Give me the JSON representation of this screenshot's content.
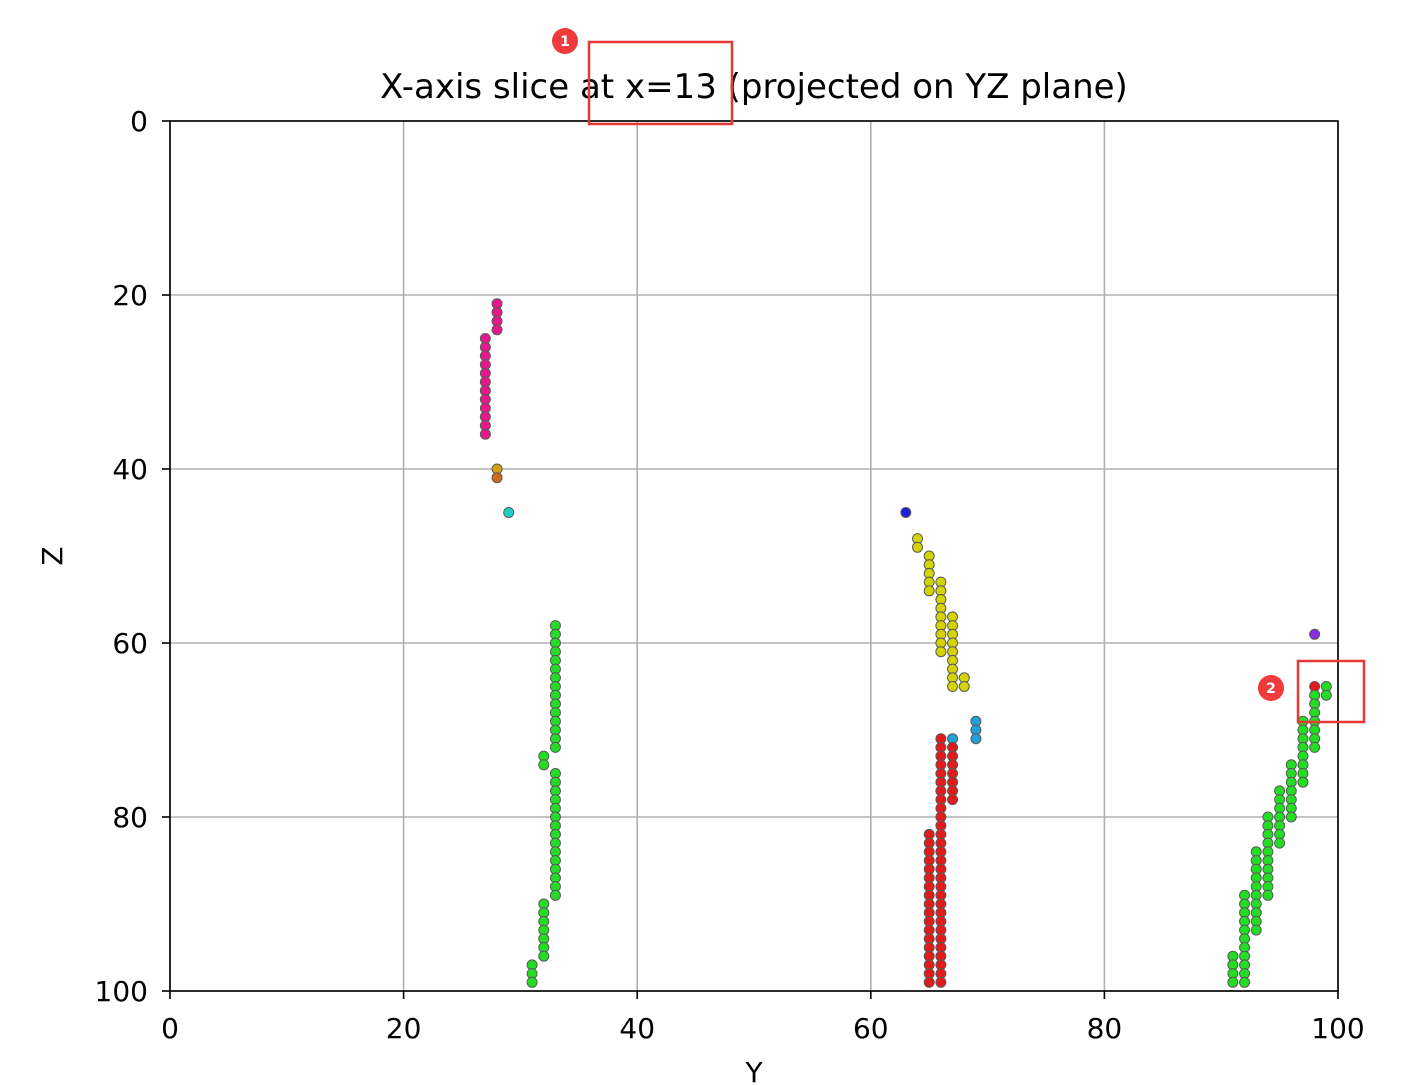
{
  "chart_data": {
    "type": "scatter",
    "title": "X-axis slice at x=13 (projected on YZ plane)",
    "xlabel": "Y",
    "ylabel": "Z",
    "xlim": [
      0,
      100
    ],
    "ylim": [
      100,
      0
    ],
    "y_inverted": true,
    "x_ticks": [
      "0",
      "20",
      "40",
      "60",
      "80",
      "100"
    ],
    "y_ticks": [
      "0",
      "20",
      "40",
      "60",
      "80",
      "100"
    ],
    "grid": true,
    "series": [
      {
        "color": "#e8178a",
        "points": [
          [
            28,
            21
          ],
          [
            28,
            22
          ],
          [
            28,
            23
          ],
          [
            28,
            24
          ],
          [
            27,
            25
          ],
          [
            27,
            26
          ],
          [
            27,
            27
          ],
          [
            27,
            28
          ],
          [
            27,
            29
          ],
          [
            27,
            30
          ],
          [
            27,
            31
          ],
          [
            27,
            32
          ],
          [
            27,
            33
          ],
          [
            27,
            34
          ],
          [
            27,
            35
          ],
          [
            27,
            36
          ]
        ]
      },
      {
        "color": "#d4a017",
        "points": [
          [
            28,
            40
          ]
        ]
      },
      {
        "color": "#d2691e",
        "points": [
          [
            28,
            41
          ]
        ]
      },
      {
        "color": "#20d0c8",
        "points": [
          [
            29,
            45
          ]
        ]
      },
      {
        "color": "#1f1fd6",
        "points": [
          [
            63,
            45
          ]
        ]
      },
      {
        "color": "#8a2be2",
        "points": [
          [
            98,
            59
          ]
        ]
      },
      {
        "color": "#1fa0d6",
        "points": [
          [
            67,
            71
          ],
          [
            69,
            69
          ],
          [
            69,
            70
          ],
          [
            69,
            71
          ]
        ]
      },
      {
        "color": "#d4d400",
        "points": [
          [
            64,
            48
          ],
          [
            64,
            49
          ],
          [
            65,
            50
          ],
          [
            65,
            51
          ],
          [
            65,
            52
          ],
          [
            65,
            53
          ],
          [
            65,
            54
          ],
          [
            66,
            53
          ],
          [
            66,
            54
          ],
          [
            66,
            55
          ],
          [
            66,
            56
          ],
          [
            66,
            57
          ],
          [
            66,
            58
          ],
          [
            66,
            59
          ],
          [
            66,
            60
          ],
          [
            66,
            61
          ],
          [
            67,
            57
          ],
          [
            67,
            58
          ],
          [
            67,
            59
          ],
          [
            67,
            60
          ],
          [
            67,
            61
          ],
          [
            67,
            62
          ],
          [
            67,
            63
          ],
          [
            67,
            64
          ],
          [
            67,
            65
          ],
          [
            68,
            64
          ],
          [
            68,
            65
          ]
        ]
      },
      {
        "color": "#e31a1c",
        "points": [
          [
            98,
            65
          ],
          [
            66,
            71
          ],
          [
            66,
            72
          ],
          [
            66,
            73
          ],
          [
            66,
            74
          ],
          [
            66,
            75
          ],
          [
            66,
            76
          ],
          [
            66,
            77
          ],
          [
            66,
            78
          ],
          [
            66,
            79
          ],
          [
            66,
            80
          ],
          [
            66,
            81
          ],
          [
            66,
            82
          ],
          [
            66,
            83
          ],
          [
            66,
            84
          ],
          [
            66,
            85
          ],
          [
            66,
            86
          ],
          [
            66,
            87
          ],
          [
            66,
            88
          ],
          [
            66,
            89
          ],
          [
            66,
            90
          ],
          [
            66,
            91
          ],
          [
            66,
            92
          ],
          [
            66,
            93
          ],
          [
            66,
            94
          ],
          [
            66,
            95
          ],
          [
            66,
            96
          ],
          [
            66,
            97
          ],
          [
            66,
            98
          ],
          [
            66,
            99
          ],
          [
            67,
            72
          ],
          [
            67,
            73
          ],
          [
            67,
            74
          ],
          [
            67,
            75
          ],
          [
            67,
            76
          ],
          [
            67,
            77
          ],
          [
            67,
            78
          ],
          [
            65,
            82
          ],
          [
            65,
            83
          ],
          [
            65,
            84
          ],
          [
            65,
            85
          ],
          [
            65,
            86
          ],
          [
            65,
            87
          ],
          [
            65,
            88
          ],
          [
            65,
            89
          ],
          [
            65,
            90
          ],
          [
            65,
            91
          ],
          [
            65,
            92
          ],
          [
            65,
            93
          ],
          [
            65,
            94
          ],
          [
            65,
            95
          ],
          [
            65,
            96
          ],
          [
            65,
            97
          ],
          [
            65,
            98
          ],
          [
            65,
            99
          ]
        ]
      },
      {
        "color": "#22dd22",
        "points": [
          [
            33,
            58
          ],
          [
            33,
            59
          ],
          [
            33,
            60
          ],
          [
            33,
            61
          ],
          [
            33,
            62
          ],
          [
            33,
            63
          ],
          [
            33,
            64
          ],
          [
            33,
            65
          ],
          [
            33,
            66
          ],
          [
            33,
            67
          ],
          [
            33,
            68
          ],
          [
            33,
            69
          ],
          [
            33,
            70
          ],
          [
            33,
            71
          ],
          [
            33,
            72
          ],
          [
            32,
            73
          ],
          [
            32,
            74
          ],
          [
            33,
            75
          ],
          [
            33,
            76
          ],
          [
            33,
            77
          ],
          [
            33,
            78
          ],
          [
            33,
            79
          ],
          [
            33,
            80
          ],
          [
            33,
            81
          ],
          [
            33,
            82
          ],
          [
            33,
            83
          ],
          [
            33,
            84
          ],
          [
            33,
            85
          ],
          [
            33,
            86
          ],
          [
            33,
            87
          ],
          [
            33,
            88
          ],
          [
            33,
            89
          ],
          [
            32,
            90
          ],
          [
            32,
            91
          ],
          [
            32,
            92
          ],
          [
            32,
            93
          ],
          [
            32,
            94
          ],
          [
            32,
            95
          ],
          [
            32,
            96
          ],
          [
            31,
            97
          ],
          [
            31,
            98
          ],
          [
            31,
            99
          ],
          [
            99,
            65
          ],
          [
            99,
            66
          ],
          [
            98,
            66
          ],
          [
            98,
            67
          ],
          [
            98,
            68
          ],
          [
            98,
            69
          ],
          [
            98,
            70
          ],
          [
            98,
            71
          ],
          [
            98,
            72
          ],
          [
            97,
            69
          ],
          [
            97,
            70
          ],
          [
            97,
            71
          ],
          [
            97,
            72
          ],
          [
            97,
            73
          ],
          [
            97,
            74
          ],
          [
            97,
            75
          ],
          [
            97,
            76
          ],
          [
            96,
            74
          ],
          [
            96,
            75
          ],
          [
            96,
            76
          ],
          [
            96,
            77
          ],
          [
            96,
            78
          ],
          [
            96,
            79
          ],
          [
            96,
            80
          ],
          [
            95,
            77
          ],
          [
            95,
            78
          ],
          [
            95,
            79
          ],
          [
            95,
            80
          ],
          [
            95,
            81
          ],
          [
            95,
            82
          ],
          [
            95,
            83
          ],
          [
            94,
            80
          ],
          [
            94,
            81
          ],
          [
            94,
            82
          ],
          [
            94,
            83
          ],
          [
            94,
            84
          ],
          [
            94,
            85
          ],
          [
            94,
            86
          ],
          [
            94,
            87
          ],
          [
            94,
            88
          ],
          [
            94,
            89
          ],
          [
            93,
            84
          ],
          [
            93,
            85
          ],
          [
            93,
            86
          ],
          [
            93,
            87
          ],
          [
            93,
            88
          ],
          [
            93,
            89
          ],
          [
            93,
            90
          ],
          [
            93,
            91
          ],
          [
            93,
            92
          ],
          [
            93,
            93
          ],
          [
            92,
            89
          ],
          [
            92,
            90
          ],
          [
            92,
            91
          ],
          [
            92,
            92
          ],
          [
            92,
            93
          ],
          [
            92,
            94
          ],
          [
            92,
            95
          ],
          [
            92,
            96
          ],
          [
            92,
            97
          ],
          [
            92,
            98
          ],
          [
            92,
            99
          ],
          [
            91,
            96
          ],
          [
            91,
            97
          ],
          [
            91,
            98
          ],
          [
            91,
            99
          ]
        ]
      }
    ],
    "annotations": [
      {
        "label": "1"
      },
      {
        "label": "2"
      }
    ]
  }
}
